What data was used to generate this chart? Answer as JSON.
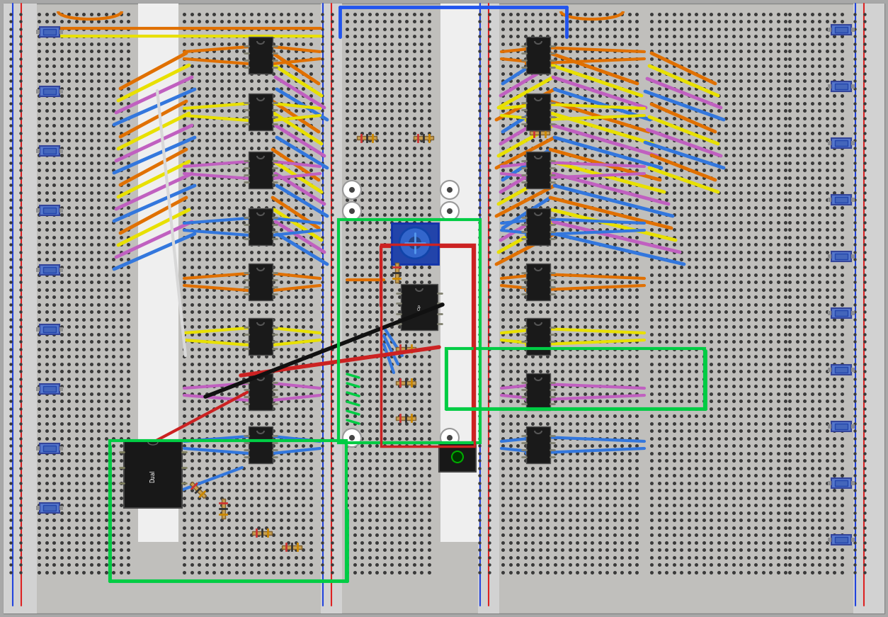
{
  "bg": "#a8a8a8",
  "board": "#c0bfbc",
  "hole": "#3a3a3a",
  "rail_red": "#dd2222",
  "rail_blue": "#2244dd",
  "white_strip": "#f0f0f0",
  "w_orange": "#e07000",
  "w_yellow": "#e8e000",
  "w_purple": "#c060c0",
  "w_blue": "#3377dd",
  "w_green": "#00cc44",
  "w_red": "#cc2222",
  "w_black": "#111111",
  "w_white": "#e8e8e8",
  "ic": "#1a1a1a",
  "trim": "#4466bb"
}
